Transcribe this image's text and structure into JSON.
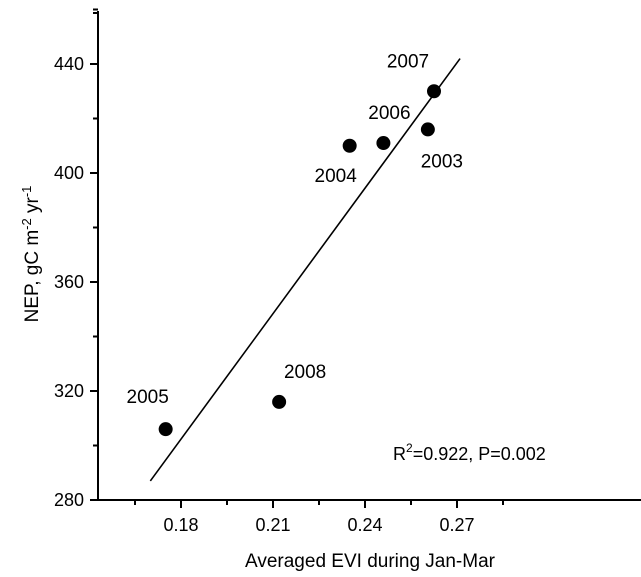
{
  "chart_data": {
    "type": "scatter",
    "title": "",
    "xlabel": "Averaged EVI during Jan-Mar",
    "ylabel": "NEP, gC m-2 yr-1",
    "xlim": [
      0.17,
      0.28
    ],
    "ylim": [
      280,
      460
    ],
    "x_ticks": [
      "0.18",
      "0.21",
      "0.24",
      "0.27"
    ],
    "y_ticks": [
      "280",
      "320",
      "360",
      "400",
      "440"
    ],
    "points": [
      {
        "label": "2005",
        "x": 0.175,
        "y": 306
      },
      {
        "label": "2008",
        "x": 0.212,
        "y": 316
      },
      {
        "label": "2004",
        "x": 0.235,
        "y": 410
      },
      {
        "label": "2006",
        "x": 0.246,
        "y": 411
      },
      {
        "label": "2003",
        "x": 0.2605,
        "y": 416
      },
      {
        "label": "2007",
        "x": 0.2625,
        "y": 430
      }
    ],
    "fit_line": {
      "x": [
        0.17,
        0.271
      ],
      "y": [
        287,
        442
      ]
    },
    "annotation": {
      "r_label": "R",
      "r_sup": "2",
      "r_rest": "=0.922, P=0.002"
    },
    "grid": false
  }
}
